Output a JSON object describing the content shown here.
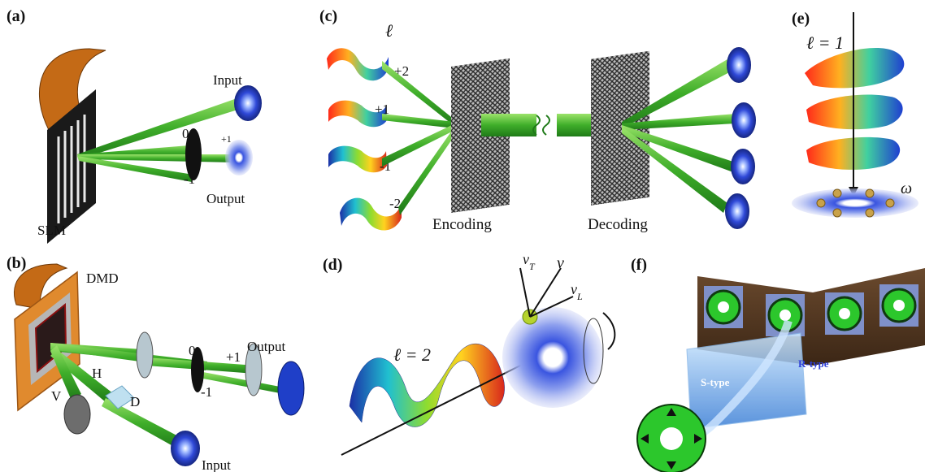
{
  "panels": [
    {
      "id": "a",
      "label": "(a)"
    },
    {
      "id": "b",
      "label": "(b)"
    },
    {
      "id": "c",
      "label": "(c)"
    },
    {
      "id": "d",
      "label": "(d)"
    },
    {
      "id": "e",
      "label": "(e)"
    },
    {
      "id": "f",
      "label": "(f)"
    }
  ],
  "panel_a": {
    "input": "Input",
    "output": "Output",
    "device": "SLM",
    "order0": "0",
    "order_m1": "-1",
    "order_p1": "+1"
  },
  "panel_b": {
    "device": "DMD",
    "output": "Output",
    "input": "Input",
    "v": "V",
    "h": "H",
    "d": "D",
    "order0": "0",
    "order_p1": "+1",
    "order_m1": "-1"
  },
  "panel_c": {
    "ell": "ℓ",
    "modes": [
      "+2",
      "+1",
      "-1",
      "-2"
    ],
    "encoding": "Encoding",
    "decoding": "Decoding"
  },
  "panel_d": {
    "ell_eq": "ℓ = 2",
    "vT": "v",
    "vT_sub": "T",
    "vvec": "v",
    "vL": "v",
    "vL_sub": "L"
  },
  "panel_e": {
    "ell_eq": "ℓ = 1",
    "omega": "ω"
  },
  "panel_f": {
    "r_type": "R-type",
    "s_type": "S-type"
  }
}
